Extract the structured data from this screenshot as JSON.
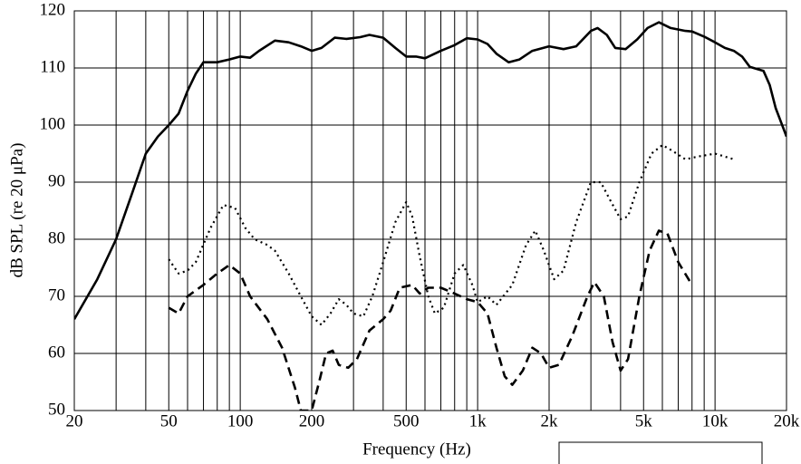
{
  "chart_data": {
    "type": "line",
    "x_label": "Frequency (Hz)",
    "y_label": "dB SPL (re 20 μPa)",
    "xscale": "log",
    "xlim": [
      20,
      20000
    ],
    "ylim": [
      50,
      120
    ],
    "xticks": [
      20,
      50,
      100,
      200,
      500,
      {
        "value": 1000,
        "label": "1k"
      },
      {
        "value": 2000,
        "label": "2k"
      },
      {
        "value": 5000,
        "label": "5k"
      },
      {
        "value": 10000,
        "label": "10k"
      },
      {
        "value": 20000,
        "label": "20k"
      }
    ],
    "xminorticks": [
      30,
      40,
      60,
      70,
      80,
      90,
      300,
      400,
      600,
      700,
      800,
      900,
      3000,
      4000,
      6000,
      7000,
      8000,
      9000
    ],
    "yticks": [
      50,
      60,
      70,
      80,
      90,
      100,
      110,
      120
    ],
    "grid": true,
    "series": [
      {
        "color": "#000000",
        "dash": "solid",
        "x": [
          20,
          25,
          30,
          35,
          40,
          45,
          50,
          55,
          60,
          65,
          70,
          80,
          90,
          100,
          110,
          120,
          140,
          160,
          180,
          200,
          220,
          250,
          280,
          320,
          350,
          400,
          450,
          500,
          550,
          600,
          700,
          800,
          900,
          1000,
          1100,
          1200,
          1350,
          1500,
          1700,
          2000,
          2300,
          2600,
          3000,
          3200,
          3500,
          3800,
          4200,
          4700,
          5200,
          5800,
          6500,
          7500,
          8000,
          9000,
          10000,
          11000,
          12000,
          13000,
          14000,
          16000,
          17000,
          18000,
          20000
        ],
        "values": [
          66,
          73,
          80,
          88,
          95,
          98,
          100,
          102,
          106,
          109,
          111,
          111,
          111.5,
          112,
          111.8,
          113,
          114.8,
          114.5,
          113.8,
          113,
          113.5,
          115.3,
          115.1,
          115.4,
          115.8,
          115.3,
          113.5,
          112,
          112,
          111.7,
          113,
          114,
          115.2,
          115,
          114.2,
          112.5,
          111,
          111.5,
          113,
          113.8,
          113.3,
          113.8,
          116.5,
          117,
          115.8,
          113.5,
          113.3,
          115,
          117,
          118,
          117,
          116.5,
          116.4,
          115.5,
          114.5,
          113.5,
          113,
          112,
          110.2,
          109.5,
          107,
          103,
          98
        ]
      },
      {
        "color": "#000000",
        "dash": "dotted",
        "x": [
          50,
          55,
          60,
          65,
          75,
          85,
          95,
          105,
          115,
          130,
          140,
          160,
          180,
          200,
          220,
          240,
          260,
          280,
          300,
          330,
          360,
          400,
          450,
          500,
          530,
          570,
          620,
          660,
          720,
          800,
          870,
          950,
          1000,
          1100,
          1200,
          1400,
          1600,
          1750,
          1900,
          2100,
          2300,
          2600,
          3000,
          3300,
          3600,
          4000,
          4300,
          4800,
          5400,
          6000,
          6600,
          7500,
          8500,
          10000,
          12000
        ],
        "values": [
          76.5,
          74,
          74.5,
          76,
          82,
          86,
          85.5,
          82,
          80,
          79,
          78,
          74,
          70,
          66.5,
          65,
          67,
          69.5,
          68.5,
          67,
          66.5,
          70,
          76,
          83,
          86.5,
          84,
          77,
          70,
          67,
          68,
          74,
          75.5,
          72,
          69,
          70,
          68.5,
          72,
          79,
          81.5,
          78,
          73,
          74.5,
          83,
          90,
          90,
          87,
          83.5,
          84,
          90,
          95,
          96.5,
          95.5,
          94,
          94.5,
          95,
          94
        ]
      },
      {
        "color": "#000000",
        "dash": "dashed",
        "x": [
          50,
          55,
          60,
          70,
          80,
          90,
          100,
          110,
          130,
          150,
          170,
          180,
          200,
          215,
          230,
          245,
          260,
          285,
          310,
          350,
          400,
          430,
          470,
          530,
          570,
          620,
          700,
          800,
          900,
          1000,
          1100,
          1200,
          1300,
          1400,
          1550,
          1700,
          1850,
          2000,
          2200,
          2500,
          2900,
          3100,
          3400,
          3700,
          4000,
          4300,
          4800,
          5300,
          5800,
          6300,
          7000,
          8000
        ],
        "values": [
          68,
          67,
          70,
          72,
          74,
          75.5,
          74,
          70,
          66,
          61,
          54,
          50,
          50,
          55,
          60,
          60.5,
          58,
          57.5,
          59,
          64,
          66,
          67.5,
          71.5,
          72,
          70.5,
          71.5,
          71.5,
          70.5,
          69.5,
          69,
          67,
          61,
          56,
          54.5,
          57,
          61,
          60,
          57.5,
          58,
          63,
          70,
          72.5,
          70,
          62,
          57,
          59,
          70,
          78,
          81.5,
          81,
          76,
          72
        ]
      }
    ]
  }
}
